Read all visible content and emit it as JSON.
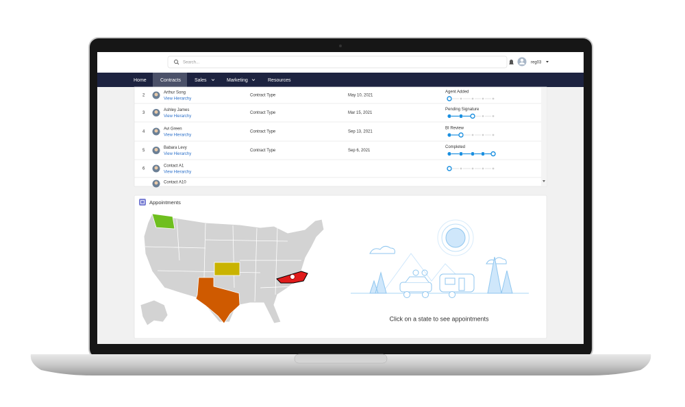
{
  "header": {
    "search_placeholder": "Search...",
    "user": "reg03"
  },
  "nav": [
    "Home",
    "Contracts",
    "Sales",
    "Marketing",
    "Resources"
  ],
  "table": {
    "rows": [
      {
        "index": 2,
        "name": "Arthur Song",
        "link": "View Hierarchy",
        "type": "Contract Type",
        "date": "May 10, 2021",
        "stage": "Agent Added"
      },
      {
        "index": 3,
        "name": "Ashley James",
        "link": "View Hierarchy",
        "type": "Contract Type",
        "date": "Mar 15, 2021",
        "stage": "Pending Signature"
      },
      {
        "index": 4,
        "name": "Avi Green",
        "link": "View Hierarchy",
        "type": "Contract Type",
        "date": "Sep 13, 2021",
        "stage": "BI Review"
      },
      {
        "index": 5,
        "name": "Babara Levy",
        "link": "View Hierarchy",
        "type": "Contract Type",
        "date": "Sep 6, 2021",
        "stage": "Completed"
      },
      {
        "index": 6,
        "name": "Contact A1",
        "link": "View Hierarchy"
      },
      {
        "name": "Contact A10"
      }
    ]
  },
  "appointments": {
    "title": "Appointments",
    "prompt": "Click on a state to see appointments"
  }
}
